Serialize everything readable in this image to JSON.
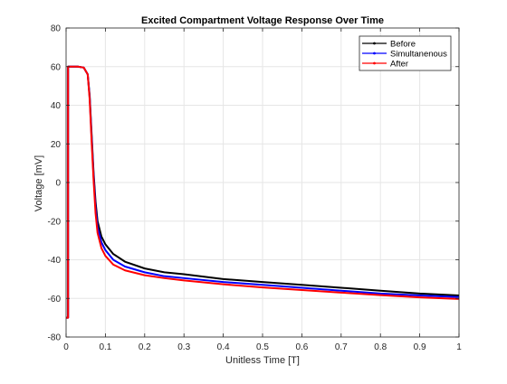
{
  "chart_data": {
    "type": "line",
    "title": "Excited Compartment Voltage Response Over Time",
    "xlabel": "Unitless Time [T]",
    "ylabel": "Voltage [mV]",
    "xlim": [
      0,
      1
    ],
    "ylim": [
      -80,
      80
    ],
    "xticks": [
      0,
      0.1,
      0.2,
      0.3,
      0.4,
      0.5,
      0.6,
      0.7,
      0.8,
      0.9,
      1
    ],
    "xtick_labels": [
      "0",
      "0.1",
      "0.2",
      "0.3",
      "0.4",
      "0.5",
      "0.6",
      "0.7",
      "0.8",
      "0.9",
      "1"
    ],
    "yticks": [
      -80,
      -60,
      -40,
      -20,
      0,
      20,
      40,
      60,
      80
    ],
    "ytick_labels": [
      "-80",
      "-60",
      "-40",
      "-20",
      "0",
      "20",
      "40",
      "60",
      "80"
    ],
    "grid": true,
    "legend_position": "top-right",
    "series": [
      {
        "name": "Before",
        "color": "#000000",
        "x": [
          0,
          0.005,
          0.005,
          0.01,
          0.03,
          0.045,
          0.055,
          0.06,
          0.065,
          0.07,
          0.075,
          0.08,
          0.09,
          0.1,
          0.12,
          0.15,
          0.2,
          0.25,
          0.3,
          0.4,
          0.5,
          0.6,
          0.7,
          0.8,
          0.9,
          1.0
        ],
        "y": [
          -70,
          -70,
          60,
          60,
          60,
          59.5,
          56,
          45,
          25,
          5,
          -10,
          -20,
          -28,
          -32,
          -37,
          -41,
          -44.5,
          -46.5,
          -47.5,
          -50,
          -51.5,
          -53,
          -54.5,
          -56,
          -57.5,
          -58.5
        ]
      },
      {
        "name": "Simultanenous",
        "color": "#0000ff",
        "x": [
          0,
          0.005,
          0.005,
          0.01,
          0.03,
          0.045,
          0.055,
          0.06,
          0.065,
          0.07,
          0.075,
          0.08,
          0.09,
          0.1,
          0.12,
          0.15,
          0.2,
          0.25,
          0.3,
          0.4,
          0.5,
          0.6,
          0.7,
          0.8,
          0.9,
          1.0
        ],
        "y": [
          -70,
          -70,
          60,
          60,
          60,
          59.5,
          56,
          44,
          23,
          3,
          -13,
          -23,
          -31,
          -35,
          -40,
          -43.5,
          -46.5,
          -48.5,
          -49.5,
          -51.5,
          -53,
          -54.5,
          -56,
          -57.5,
          -58.5,
          -59.3
        ]
      },
      {
        "name": "After",
        "color": "#ff0000",
        "x": [
          0,
          0.005,
          0.005,
          0.01,
          0.03,
          0.045,
          0.055,
          0.06,
          0.065,
          0.07,
          0.075,
          0.08,
          0.09,
          0.1,
          0.12,
          0.15,
          0.2,
          0.25,
          0.3,
          0.4,
          0.5,
          0.6,
          0.7,
          0.8,
          0.9,
          1.0
        ],
        "y": [
          -70,
          -70,
          60,
          60,
          60,
          59.5,
          56,
          43,
          21,
          1,
          -16,
          -26,
          -34,
          -38,
          -42.5,
          -45.5,
          -48,
          -49.5,
          -50.7,
          -52.7,
          -54.3,
          -55.7,
          -57,
          -58.3,
          -59.5,
          -60.3
        ]
      }
    ]
  }
}
